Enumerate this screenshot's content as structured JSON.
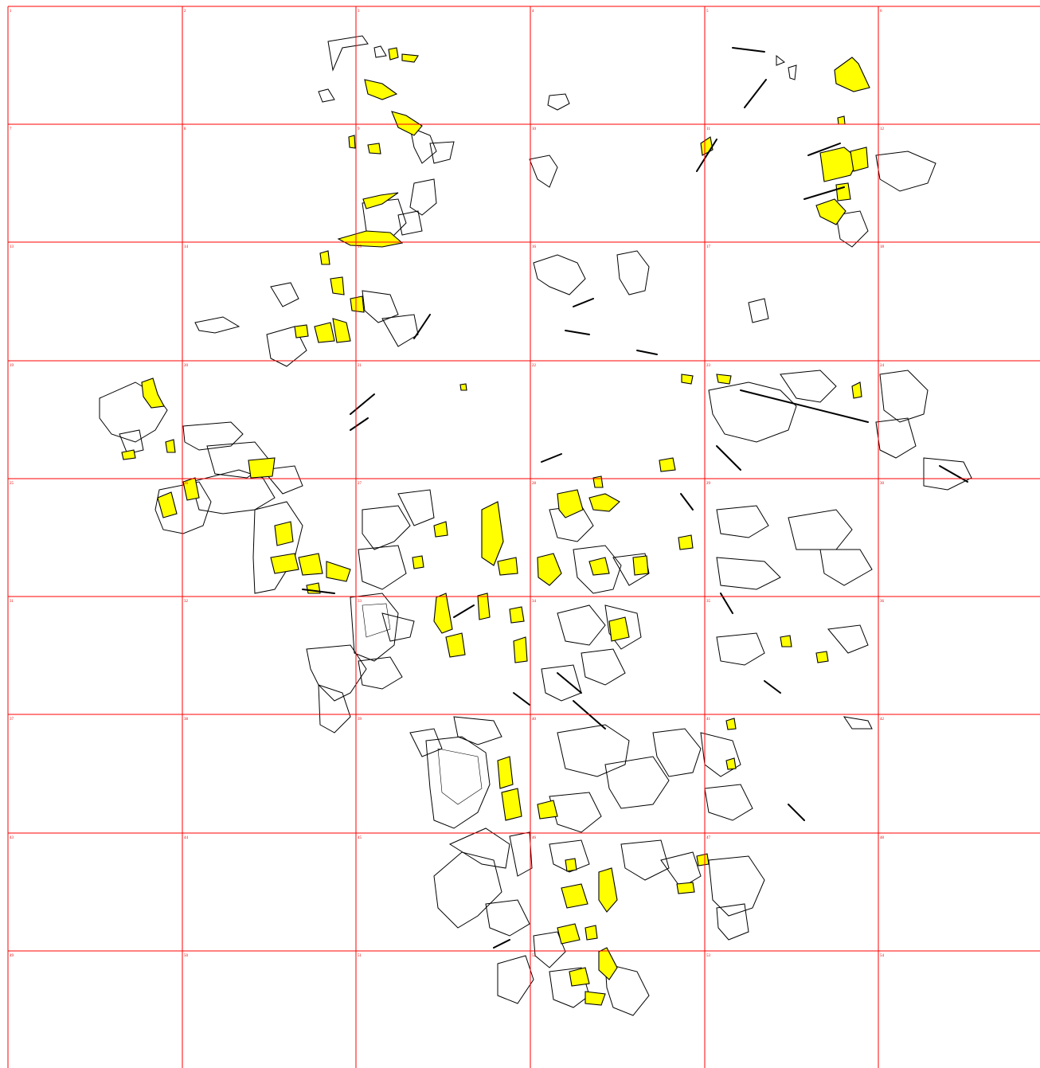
{
  "map": {
    "highlight_color": "#ffff00",
    "grid_color": "#ff0000",
    "outline_color": "#000000",
    "cell_labels": [
      "1",
      "2",
      "3",
      "4",
      "5",
      "6",
      "7",
      "8",
      "9",
      "10",
      "11",
      "12",
      "13",
      "14",
      "15",
      "16",
      "17",
      "18",
      "19",
      "20",
      "21",
      "22",
      "23",
      "24",
      "25",
      "26",
      "27",
      "28",
      "29",
      "30",
      "31",
      "32",
      "33",
      "34",
      "35",
      "36",
      "37",
      "38",
      "39",
      "40",
      "41",
      "42",
      "43",
      "44",
      "45",
      "46",
      "47",
      "48",
      "49",
      "50",
      "51",
      "52",
      "53",
      "54"
    ]
  }
}
